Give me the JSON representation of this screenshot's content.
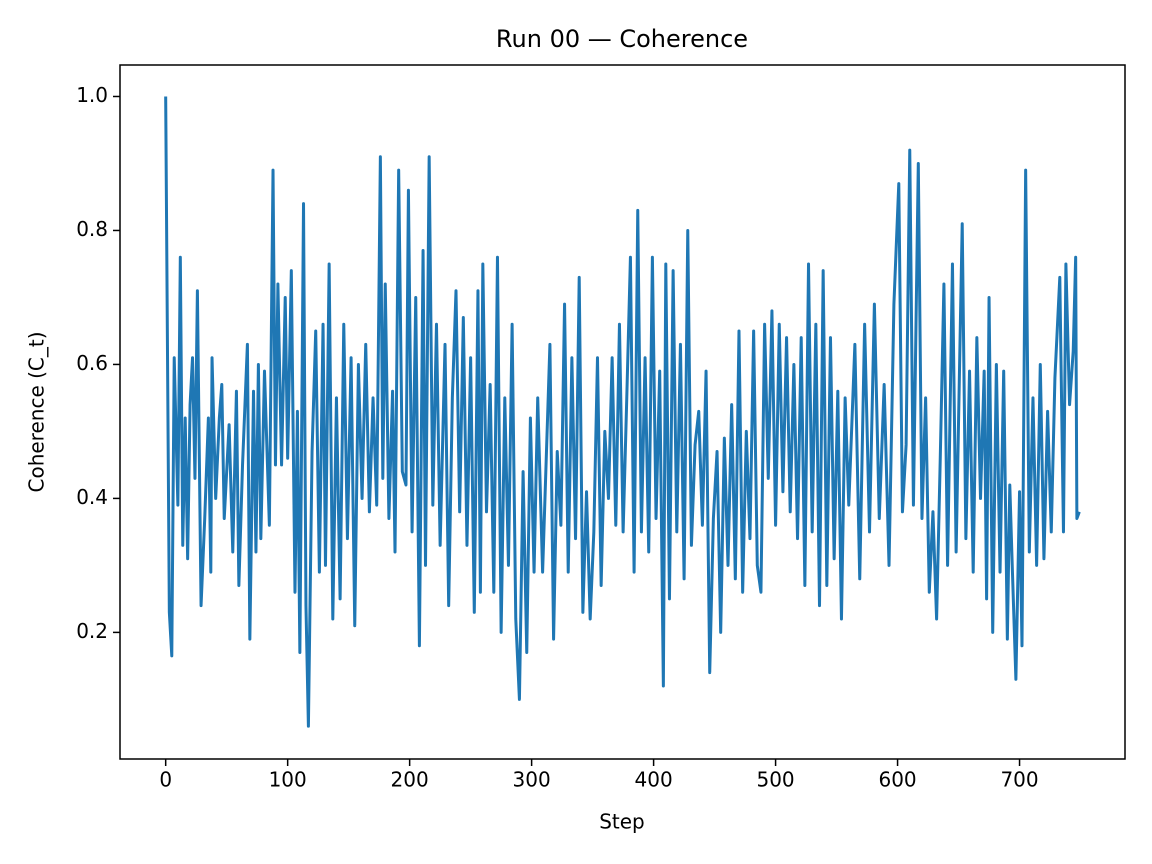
{
  "chart_data": {
    "type": "line",
    "title": "Run 00 — Coherence",
    "x_label": "Step",
    "y_label": "Coherence (C_t)",
    "xlim": [
      -37.45,
      786.45
    ],
    "ylim": [
      0.011,
      1.047
    ],
    "xticks": [
      0,
      100,
      200,
      300,
      400,
      500,
      600,
      700
    ],
    "yticks": [
      0.2,
      0.4,
      0.6,
      0.8,
      {
        "value": 1,
        "label": "1.0"
      }
    ],
    "series": [
      {
        "name": "Coherence",
        "color": "#1f77b4",
        "x": [
          0,
          3,
          5,
          7,
          10,
          12,
          14,
          16,
          18,
          20,
          22,
          24,
          26,
          29,
          32,
          35,
          37,
          38,
          41,
          44,
          46,
          48,
          52,
          55,
          58,
          60,
          63,
          67,
          69,
          72,
          74,
          76,
          78,
          81,
          85,
          88,
          90,
          92,
          95,
          98,
          100,
          103,
          106,
          108,
          110,
          113,
          115,
          117,
          120,
          123,
          126,
          129,
          131,
          134,
          137,
          140,
          143,
          146,
          149,
          152,
          155,
          158,
          161,
          164,
          167,
          170,
          173,
          176,
          178,
          180,
          183,
          186,
          188,
          191,
          194,
          197,
          199,
          202,
          205,
          208,
          211,
          213,
          216,
          219,
          222,
          225,
          229,
          232,
          235,
          238,
          241,
          244,
          247,
          250,
          253,
          256,
          258,
          260,
          263,
          266,
          269,
          272,
          275,
          278,
          281,
          284,
          287,
          290,
          293,
          296,
          299,
          302,
          305,
          309,
          312,
          315,
          318,
          321,
          324,
          327,
          330,
          333,
          336,
          339,
          342,
          345,
          348,
          351,
          354,
          357,
          360,
          363,
          366,
          369,
          372,
          375,
          378,
          381,
          384,
          387,
          390,
          393,
          396,
          399,
          402,
          405,
          408,
          410,
          413,
          416,
          419,
          422,
          425,
          428,
          431,
          434,
          437,
          440,
          443,
          446,
          449,
          452,
          455,
          458,
          461,
          464,
          467,
          470,
          473,
          476,
          479,
          482,
          485,
          488,
          491,
          494,
          497,
          500,
          503,
          506,
          509,
          512,
          515,
          518,
          521,
          524,
          527,
          530,
          533,
          536,
          539,
          542,
          545,
          548,
          551,
          554,
          557,
          560,
          565,
          569,
          573,
          577,
          581,
          585,
          589,
          593,
          597,
          601,
          604,
          607,
          610,
          613,
          617,
          620,
          623,
          626,
          629,
          632,
          635,
          638,
          641,
          645,
          648,
          653,
          656,
          659,
          662,
          665,
          668,
          671,
          673,
          675,
          678,
          681,
          684,
          687,
          690,
          692,
          694,
          697,
          700,
          702,
          705,
          708,
          711,
          714,
          717,
          720,
          723,
          726,
          729,
          733,
          736,
          738,
          741,
          744,
          746,
          747,
          749
        ],
        "values": [
          1.0,
          0.23,
          0.165,
          0.61,
          0.39,
          0.76,
          0.33,
          0.52,
          0.31,
          0.54,
          0.61,
          0.43,
          0.71,
          0.24,
          0.37,
          0.52,
          0.29,
          0.61,
          0.4,
          0.52,
          0.57,
          0.37,
          0.51,
          0.32,
          0.56,
          0.27,
          0.45,
          0.63,
          0.19,
          0.56,
          0.32,
          0.6,
          0.34,
          0.59,
          0.36,
          0.89,
          0.45,
          0.72,
          0.45,
          0.7,
          0.46,
          0.74,
          0.26,
          0.53,
          0.17,
          0.84,
          0.24,
          0.06,
          0.47,
          0.65,
          0.29,
          0.66,
          0.3,
          0.75,
          0.22,
          0.55,
          0.25,
          0.66,
          0.34,
          0.61,
          0.21,
          0.6,
          0.4,
          0.63,
          0.38,
          0.55,
          0.39,
          0.91,
          0.43,
          0.72,
          0.37,
          0.56,
          0.32,
          0.89,
          0.44,
          0.42,
          0.86,
          0.35,
          0.7,
          0.18,
          0.77,
          0.3,
          0.91,
          0.39,
          0.66,
          0.33,
          0.63,
          0.24,
          0.55,
          0.71,
          0.38,
          0.67,
          0.33,
          0.61,
          0.23,
          0.71,
          0.26,
          0.75,
          0.38,
          0.57,
          0.26,
          0.76,
          0.2,
          0.55,
          0.3,
          0.66,
          0.22,
          0.1,
          0.44,
          0.17,
          0.52,
          0.29,
          0.55,
          0.29,
          0.46,
          0.63,
          0.19,
          0.47,
          0.36,
          0.69,
          0.29,
          0.61,
          0.34,
          0.73,
          0.23,
          0.41,
          0.22,
          0.35,
          0.61,
          0.27,
          0.5,
          0.4,
          0.61,
          0.36,
          0.66,
          0.35,
          0.55,
          0.76,
          0.29,
          0.83,
          0.35,
          0.61,
          0.32,
          0.76,
          0.37,
          0.59,
          0.12,
          0.75,
          0.25,
          0.74,
          0.35,
          0.63,
          0.28,
          0.8,
          0.33,
          0.48,
          0.53,
          0.36,
          0.59,
          0.14,
          0.37,
          0.47,
          0.2,
          0.49,
          0.3,
          0.54,
          0.28,
          0.65,
          0.26,
          0.5,
          0.34,
          0.65,
          0.3,
          0.26,
          0.66,
          0.43,
          0.68,
          0.36,
          0.66,
          0.41,
          0.64,
          0.38,
          0.6,
          0.34,
          0.64,
          0.27,
          0.75,
          0.35,
          0.66,
          0.24,
          0.74,
          0.27,
          0.64,
          0.31,
          0.56,
          0.22,
          0.55,
          0.39,
          0.63,
          0.28,
          0.66,
          0.35,
          0.69,
          0.37,
          0.57,
          0.3,
          0.69,
          0.87,
          0.38,
          0.48,
          0.92,
          0.39,
          0.9,
          0.37,
          0.55,
          0.26,
          0.38,
          0.22,
          0.46,
          0.72,
          0.3,
          0.75,
          0.32,
          0.81,
          0.34,
          0.59,
          0.29,
          0.64,
          0.4,
          0.59,
          0.25,
          0.7,
          0.2,
          0.6,
          0.29,
          0.59,
          0.19,
          0.42,
          0.3,
          0.13,
          0.41,
          0.18,
          0.89,
          0.32,
          0.55,
          0.3,
          0.6,
          0.31,
          0.53,
          0.35,
          0.58,
          0.73,
          0.35,
          0.75,
          0.54,
          0.62,
          0.76,
          0.37,
          0.38
        ]
      }
    ]
  }
}
